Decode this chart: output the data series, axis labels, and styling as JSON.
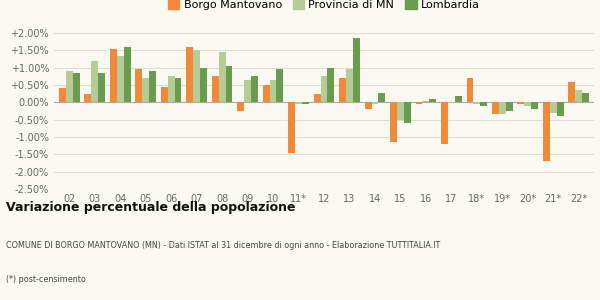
{
  "years": [
    "02",
    "03",
    "04",
    "05",
    "06",
    "07",
    "08",
    "09",
    "10",
    "11*",
    "12",
    "13",
    "14",
    "15",
    "16",
    "17",
    "18*",
    "19*",
    "20*",
    "21*",
    "22*"
  ],
  "borgo": [
    0.4,
    0.25,
    1.55,
    0.95,
    0.45,
    1.6,
    0.75,
    -0.25,
    0.5,
    -1.45,
    0.25,
    0.7,
    -0.2,
    -1.15,
    -0.05,
    -1.2,
    0.7,
    -0.35,
    -0.05,
    -1.7,
    0.6
  ],
  "provincia": [
    0.9,
    1.2,
    1.35,
    0.7,
    0.75,
    1.5,
    1.45,
    0.65,
    0.65,
    -0.05,
    0.75,
    0.95,
    -0.05,
    -0.5,
    0.05,
    -0.02,
    -0.05,
    -0.35,
    -0.1,
    -0.3,
    0.35
  ],
  "lombardia": [
    0.85,
    0.85,
    1.6,
    0.9,
    0.7,
    1.0,
    1.05,
    0.75,
    0.95,
    -0.05,
    1.0,
    1.85,
    0.28,
    -0.6,
    0.1,
    0.18,
    -0.1,
    -0.25,
    -0.2,
    -0.4,
    0.27
  ],
  "color_borgo": "#f0893a",
  "color_provincia": "#b5cc96",
  "color_lombardia": "#6a9c4f",
  "title": "Variazione percentuale della popolazione",
  "subtitle": "COMUNE DI BORGO MANTOVANO (MN) - Dati ISTAT al 31 dicembre di ogni anno - Elaborazione TUTTITALIA.IT",
  "footnote": "(*) post-censimento",
  "ylim": [
    -2.5,
    2.0
  ],
  "yticks": [
    -2.5,
    -2.0,
    -1.5,
    -1.0,
    -0.5,
    0.0,
    0.5,
    1.0,
    1.5,
    2.0
  ],
  "ytick_labels": [
    "-2.50%",
    "-2.00%",
    "-1.50%",
    "-1.00%",
    "-0.50%",
    "0.00%",
    "+0.50%",
    "+1.00%",
    "+1.50%",
    "+2.00%"
  ],
  "background_color": "#f9f9f2",
  "grid_color": "#ddddcc"
}
